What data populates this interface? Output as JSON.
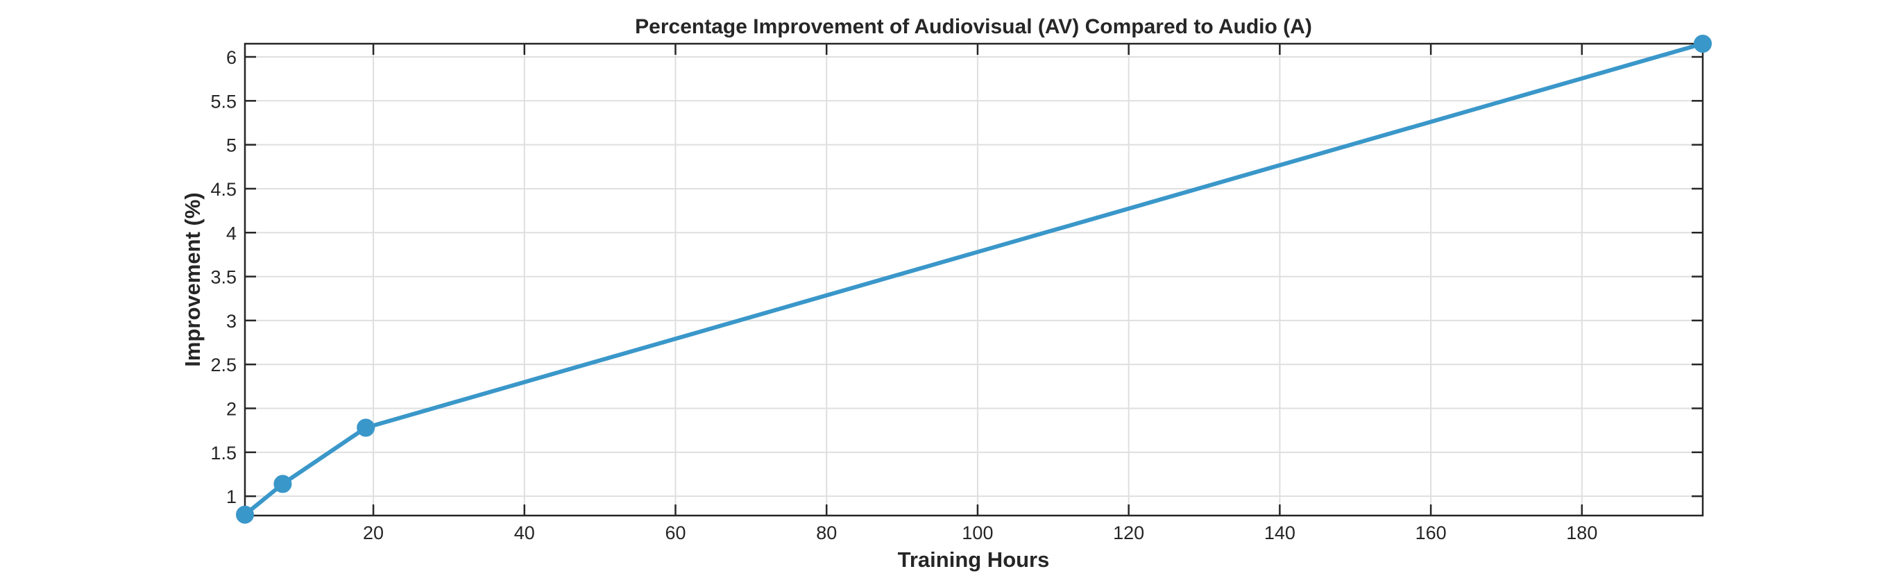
{
  "chart_data": {
    "type": "line",
    "title": "Percentage Improvement of Audiovisual (AV) Compared to Audio (A)",
    "xlabel": "Training Hours",
    "ylabel": "Improvement (%)",
    "xlim": [
      3,
      196
    ],
    "ylim": [
      0.78,
      6.15
    ],
    "xticks": [
      20,
      40,
      60,
      80,
      100,
      120,
      140,
      160,
      180
    ],
    "xtick_labels": [
      "20",
      "40",
      "60",
      "80",
      "100",
      "120",
      "140",
      "160",
      "180"
    ],
    "yticks": [
      1,
      1.5,
      2,
      2.5,
      3,
      3.5,
      4,
      4.5,
      5,
      5.5,
      6
    ],
    "ytick_labels": [
      "1",
      "1.5",
      "2",
      "2.5",
      "3",
      "3.5",
      "4",
      "4.5",
      "5",
      "5.5",
      "6"
    ],
    "grid": true,
    "series": [
      {
        "x": [
          3,
          8,
          19,
          196
        ],
        "y": [
          0.79,
          1.14,
          1.78,
          6.15
        ],
        "color": "#3a97c9",
        "marker": "circle"
      }
    ]
  }
}
